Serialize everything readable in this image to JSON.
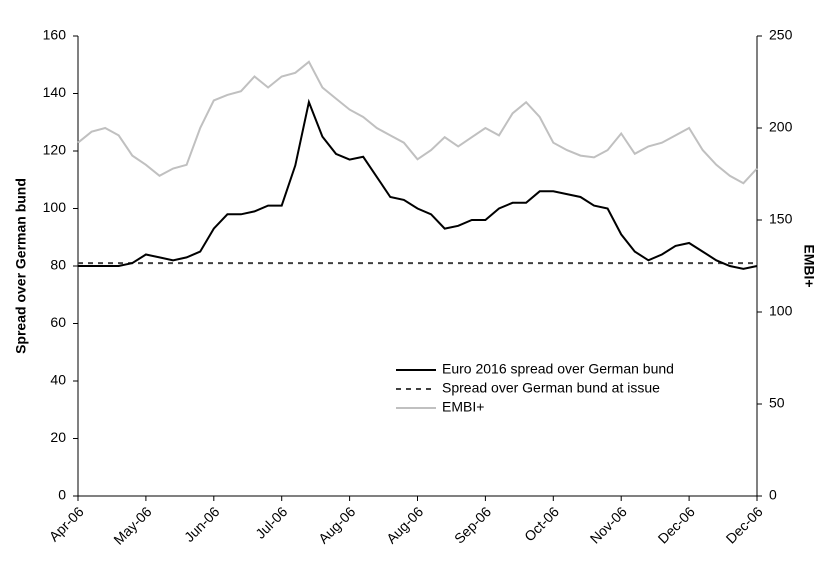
{
  "chart_data": {
    "type": "line",
    "y_label": "Spread over German bund",
    "y2_label": "EMBI+",
    "x": [
      0,
      2,
      4,
      6,
      8,
      10,
      12,
      14,
      16,
      18,
      20,
      22,
      24,
      26,
      28,
      30,
      32,
      34,
      36,
      38,
      40,
      42,
      44,
      46,
      48,
      50,
      52,
      54,
      56,
      58,
      60,
      62,
      64,
      66,
      68,
      70,
      72,
      74,
      76,
      78,
      80,
      82,
      84,
      86,
      88,
      90,
      92,
      94,
      96,
      98,
      100
    ],
    "xlim": [
      0,
      100
    ],
    "xticks": [
      {
        "value": 0,
        "label": "Apr-06"
      },
      {
        "value": 10,
        "label": "May-06"
      },
      {
        "value": 20,
        "label": "Jun-06"
      },
      {
        "value": 30,
        "label": "Jul-06"
      },
      {
        "value": 40,
        "label": "Aug-06"
      },
      {
        "value": 50,
        "label": "Aug-06"
      },
      {
        "value": 60,
        "label": "Sep-06"
      },
      {
        "value": 70,
        "label": "Oct-06"
      },
      {
        "value": 80,
        "label": "Nov-06"
      },
      {
        "value": 90,
        "label": "Dec-06"
      },
      {
        "value": 100,
        "label": "Dec-06"
      }
    ],
    "ylim": [
      0,
      160
    ],
    "yticks": [
      0,
      20,
      40,
      60,
      80,
      100,
      120,
      140,
      160
    ],
    "y2lim": [
      0,
      250
    ],
    "y2ticks": [
      0,
      50,
      100,
      150,
      200,
      250
    ],
    "series": [
      {
        "name": "Euro 2016 spread over German bund",
        "color": "#000000",
        "dashed": false,
        "values": [
          80,
          80,
          80,
          80,
          81,
          84,
          83,
          82,
          83,
          85,
          93,
          98,
          98,
          99,
          101,
          101,
          115,
          137,
          125,
          119,
          117,
          118,
          111,
          104,
          103,
          100,
          98,
          93,
          94,
          96,
          96,
          100,
          102,
          102,
          106,
          106,
          105,
          104,
          101,
          100,
          91,
          85,
          82,
          84,
          87,
          88,
          85,
          82,
          80,
          79,
          80
        ]
      },
      {
        "name": "Spread over German bund at issue",
        "color": "#404040",
        "dashed": true,
        "values": [
          81,
          81,
          81,
          81,
          81,
          81,
          81,
          81,
          81,
          81,
          81,
          81,
          81,
          81,
          81,
          81,
          81,
          81,
          81,
          81,
          81,
          81,
          81,
          81,
          81,
          81,
          81,
          81,
          81,
          81,
          81,
          81,
          81,
          81,
          81,
          81,
          81,
          81,
          81,
          81,
          81,
          81,
          81,
          81,
          81,
          81,
          81,
          81,
          81,
          81,
          81
        ]
      },
      {
        "name": "EMBI+",
        "color": "#c0c0c0",
        "dashed": false,
        "axis": "y2",
        "values": [
          192,
          198,
          200,
          196,
          185,
          180,
          174,
          178,
          180,
          200,
          215,
          218,
          220,
          228,
          222,
          228,
          230,
          236,
          222,
          216,
          210,
          206,
          200,
          196,
          192,
          183,
          188,
          195,
          190,
          195,
          200,
          196,
          208,
          214,
          206,
          192,
          188,
          185,
          184,
          188,
          197,
          186,
          190,
          192,
          196,
          200,
          188,
          180,
          174,
          170,
          178
        ]
      }
    ]
  }
}
